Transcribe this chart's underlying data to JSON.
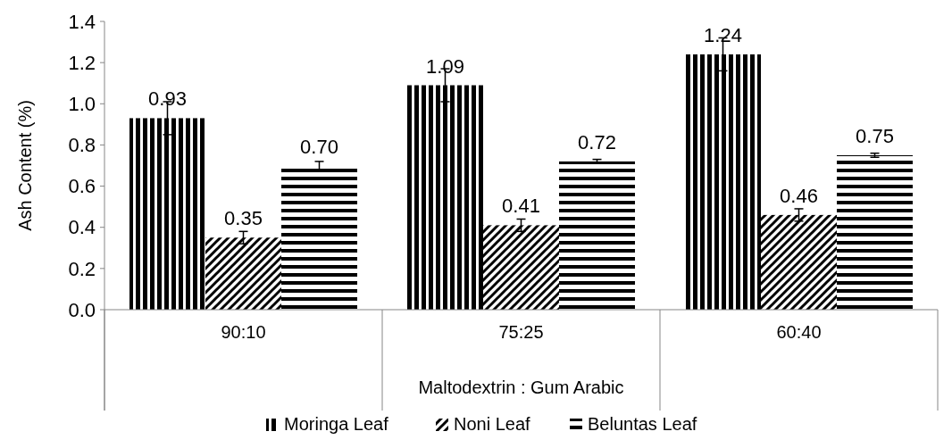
{
  "chart_data": {
    "type": "bar",
    "xlabel": "Maltodextrin : Gum Arabic",
    "ylabel": "Ash Content (%)",
    "categories": [
      "90:10",
      "75:25",
      "60:40"
    ],
    "series": [
      {
        "name": "Moringa Leaf",
        "color": "#000000",
        "values": [
          0.93,
          1.09,
          1.24
        ],
        "errors": [
          0.08,
          0.08,
          0.08
        ],
        "value_labels": [
          "0.93",
          "1.09",
          "1.24"
        ]
      },
      {
        "name": "Noni Leaf",
        "color": "#000000",
        "values": [
          0.35,
          0.41,
          0.46
        ],
        "errors": [
          0.03,
          0.03,
          0.03
        ],
        "value_labels": [
          "0.35",
          "0.41",
          "0.46"
        ]
      },
      {
        "name": "Beluntas Leaf",
        "color": "#000000",
        "values": [
          0.7,
          0.72,
          0.75
        ],
        "errors": [
          0.02,
          0.01,
          0.01
        ],
        "value_labels": [
          "0.70",
          "0.72",
          "0.75"
        ]
      }
    ],
    "ylim": [
      0,
      1.4
    ],
    "yticks": [
      {
        "value": 0,
        "label": "0.0"
      },
      {
        "value": 0.2,
        "label": "0.2"
      },
      {
        "value": 0.4,
        "label": "0.4"
      },
      {
        "value": 0.6,
        "label": "0.6"
      },
      {
        "value": 0.8,
        "label": "0.8"
      },
      {
        "value": 1,
        "label": "1.0"
      },
      {
        "value": 1.2,
        "label": "1.2"
      },
      {
        "value": 1.4,
        "label": "1.4"
      }
    ],
    "legend": "bottom",
    "grid": false
  }
}
